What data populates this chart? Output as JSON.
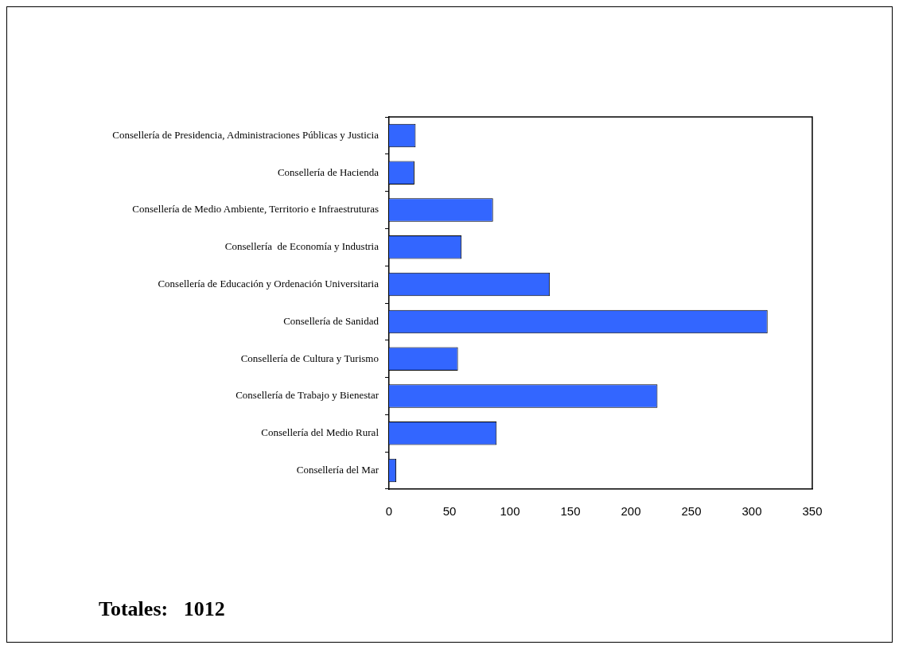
{
  "chart_data": {
    "type": "bar",
    "orientation": "horizontal",
    "categories": [
      "Consellería de Presidencia, Administraciones Públicas y Justicia",
      "Consellería de Hacienda",
      "Consellería de Medio Ambiente, Territorio e Infraestruturas",
      "Consellería  de Economía y Industria",
      "Consellería de Educación y Ordenación Universitaria",
      "Consellería de Sanidad",
      "Consellería de Cultura y Turismo",
      "Consellería de Trabajo y Bienestar",
      "Consellería del Medio Rural",
      "Consellería del Mar"
    ],
    "values": [
      22,
      21,
      86,
      60,
      133,
      313,
      57,
      222,
      89,
      6
    ],
    "color": "#3366ff",
    "xlim": [
      0,
      350
    ],
    "xticks": [
      0,
      50,
      100,
      150,
      200,
      250,
      300,
      350
    ],
    "grid": false,
    "legend": false,
    "annotations": [
      "Totales:   1012"
    ]
  }
}
